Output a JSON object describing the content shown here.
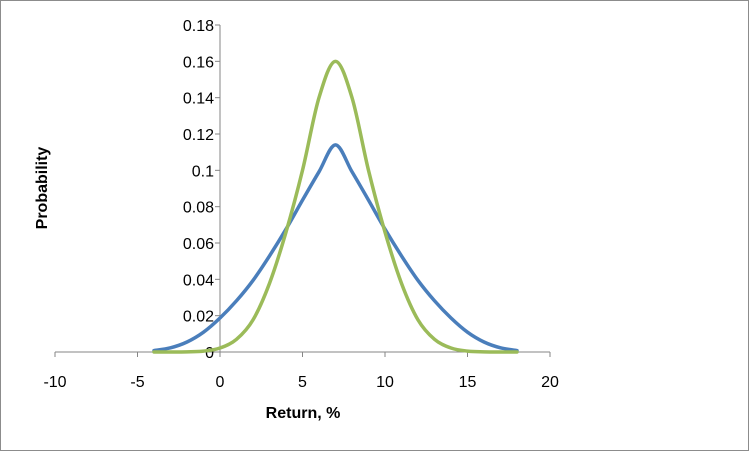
{
  "chart_data": {
    "type": "line",
    "title": "",
    "xlabel": "Return, %",
    "ylabel": "Probability",
    "xlim": [
      -10,
      20
    ],
    "ylim": [
      0,
      0.18
    ],
    "grid": false,
    "legend": "none",
    "x_ticks": [
      -10,
      -5,
      0,
      5,
      10,
      15,
      20
    ],
    "x_tick_labels": [
      "-10",
      "-5",
      "0",
      "5",
      "10",
      "15",
      "20"
    ],
    "y_ticks": [
      0,
      0.02,
      0.04,
      0.06,
      0.08,
      0.1,
      0.12,
      0.14,
      0.16,
      0.18
    ],
    "y_tick_labels": [
      "0",
      "0.02",
      "0.04",
      "0.06",
      "0.08",
      "0.1",
      "0.12",
      "0.14",
      "0.16",
      "0.18"
    ],
    "series": [
      {
        "color": "#4a7ebb",
        "x": [
          -4,
          -3,
          -2,
          -1,
          0,
          1,
          2,
          3,
          4,
          5,
          6,
          7,
          8,
          9,
          10,
          11,
          12,
          13,
          14,
          15,
          16,
          17,
          18
        ],
        "y": [
          0.0008,
          0.0023,
          0.0055,
          0.0109,
          0.0187,
          0.0282,
          0.0394,
          0.0529,
          0.0676,
          0.0836,
          0.0992,
          0.114,
          0.0992,
          0.0836,
          0.0676,
          0.0529,
          0.0394,
          0.0282,
          0.0187,
          0.0109,
          0.0055,
          0.0023,
          0.0008
        ]
      },
      {
        "color": "#9bbb59",
        "x": [
          -4,
          -3,
          -2,
          -1,
          0,
          1,
          2,
          3,
          4,
          5,
          6,
          7,
          8,
          9,
          10,
          11,
          12,
          13,
          14,
          15,
          16,
          17,
          18
        ],
        "y": [
          0.0,
          0.0,
          0.0001,
          0.0005,
          0.0022,
          0.007,
          0.0177,
          0.0378,
          0.066,
          0.1,
          0.14,
          0.16,
          0.14,
          0.1,
          0.066,
          0.0378,
          0.0177,
          0.007,
          0.0022,
          0.0005,
          0.0001,
          0.0,
          0.0
        ]
      }
    ]
  }
}
